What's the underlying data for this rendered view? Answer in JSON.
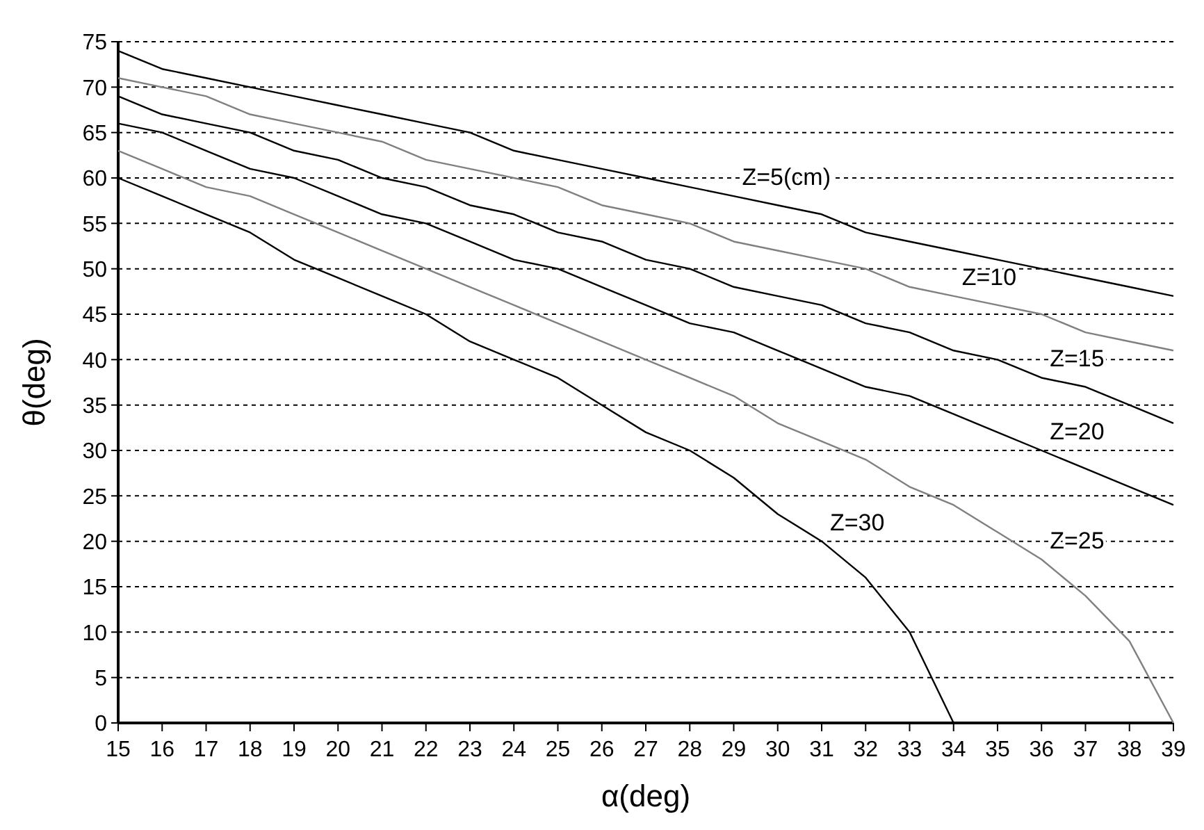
{
  "chart_data": {
    "type": "line",
    "xlabel": "α(deg)",
    "ylabel": "θ(deg)",
    "xlim": [
      15,
      39
    ],
    "xticks": [
      15,
      16,
      17,
      18,
      19,
      20,
      21,
      22,
      23,
      24,
      25,
      26,
      27,
      28,
      29,
      30,
      31,
      32,
      33,
      34,
      35,
      36,
      37,
      38,
      39
    ],
    "ylim": [
      0,
      75
    ],
    "yticks": [
      0,
      5,
      10,
      15,
      20,
      25,
      30,
      35,
      40,
      45,
      50,
      55,
      60,
      65,
      70,
      75
    ],
    "grid": "y",
    "marker": "none",
    "line_style": "solid",
    "x": [
      15,
      16,
      17,
      18,
      19,
      20,
      21,
      22,
      23,
      24,
      25,
      26,
      27,
      28,
      29,
      30,
      31,
      32,
      33,
      34,
      35,
      36,
      37,
      38,
      39
    ],
    "series": [
      {
        "name": "Z=5(cm)",
        "color": "#000000",
        "values": [
          74,
          72,
          71,
          70,
          69,
          68,
          67,
          66,
          65,
          63,
          62,
          61,
          60,
          59,
          58,
          57,
          56,
          54,
          53,
          52,
          51,
          50,
          49,
          48,
          47
        ]
      },
      {
        "name": "Z=10",
        "color": "#808080",
        "values": [
          71,
          70,
          69,
          67,
          66,
          65,
          64,
          62,
          61,
          60,
          59,
          57,
          56,
          55,
          53,
          52,
          51,
          50,
          48,
          47,
          46,
          45,
          43,
          42,
          41
        ]
      },
      {
        "name": "Z=15",
        "color": "#000000",
        "values": [
          69,
          67,
          66,
          65,
          63,
          62,
          60,
          59,
          57,
          56,
          54,
          53,
          51,
          50,
          48,
          47,
          46,
          44,
          43,
          41,
          40,
          38,
          37,
          35,
          33
        ]
      },
      {
        "name": "Z=20",
        "color": "#000000",
        "values": [
          66,
          65,
          63,
          61,
          60,
          58,
          56,
          55,
          53,
          51,
          50,
          48,
          46,
          44,
          43,
          41,
          39,
          37,
          36,
          34,
          32,
          30,
          28,
          26,
          24
        ]
      },
      {
        "name": "Z=25",
        "color": "#808080",
        "values": [
          63,
          61,
          59,
          58,
          56,
          54,
          52,
          50,
          48,
          46,
          44,
          42,
          40,
          38,
          36,
          33,
          31,
          29,
          26,
          24,
          21,
          18,
          14,
          9,
          0
        ]
      },
      {
        "name": "Z=30",
        "color": "#000000",
        "x": [
          15,
          16,
          17,
          18,
          19,
          20,
          21,
          22,
          23,
          24,
          25,
          26,
          27,
          28,
          29,
          30,
          31,
          32,
          33,
          34
        ],
        "values": [
          60,
          58,
          56,
          54,
          51,
          49,
          47,
          45,
          42,
          40,
          38,
          35,
          32,
          30,
          27,
          23,
          20,
          16,
          10,
          0
        ]
      }
    ]
  }
}
